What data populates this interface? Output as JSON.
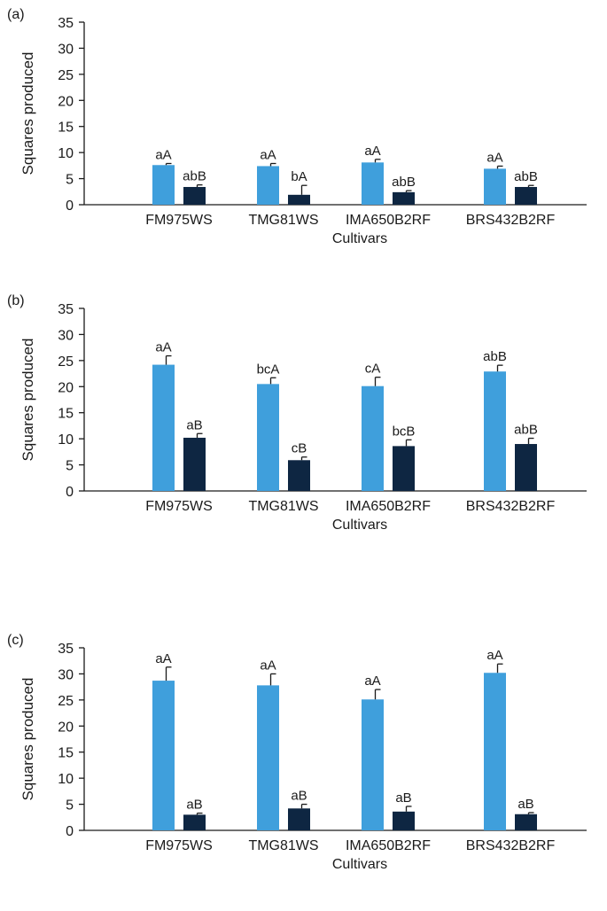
{
  "colors": {
    "series_light": "#3f9fdc",
    "series_dark": "#0e2642",
    "axis": "#1a1a1a"
  },
  "chart_data": [
    {
      "type": "bar",
      "panel_label": "(a)",
      "ylabel": "Squares produced",
      "xlabel": "Cultivars",
      "ylim": [
        0,
        35
      ],
      "yticks": [
        "0",
        "5",
        "10",
        "15",
        "20",
        "25",
        "30",
        "35"
      ],
      "categories": [
        "FM975WS",
        "TMG81WS",
        "IMA650B2RF",
        "BRS432B2RF"
      ],
      "series": [
        {
          "values": [
            7.6,
            7.4,
            8.1,
            6.9
          ],
          "errors": [
            0.3,
            0.5,
            0.6,
            0.5
          ],
          "labels": [
            "aA",
            "aA",
            "aA",
            "aA"
          ]
        },
        {
          "values": [
            3.4,
            1.9,
            2.4,
            3.4
          ],
          "errors": [
            0.4,
            1.8,
            0.3,
            0.3
          ],
          "labels": [
            "abB",
            "bA",
            "abB",
            "abB"
          ]
        }
      ]
    },
    {
      "type": "bar",
      "panel_label": "(b)",
      "ylabel": "Squares produced",
      "xlabel": "Cultivars",
      "ylim": [
        0,
        35
      ],
      "yticks": [
        "0",
        "5",
        "10",
        "15",
        "20",
        "25",
        "30",
        "35"
      ],
      "categories": [
        "FM975WS",
        "TMG81WS",
        "IMA650B2RF",
        "BRS432B2RF"
      ],
      "series": [
        {
          "values": [
            24.2,
            20.5,
            20.1,
            22.9
          ],
          "errors": [
            1.7,
            1.2,
            1.7,
            1.2
          ],
          "labels": [
            "aA",
            "bcA",
            "cA",
            "abB"
          ]
        },
        {
          "values": [
            10.2,
            5.9,
            8.6,
            9.0
          ],
          "errors": [
            0.8,
            0.6,
            1.2,
            1.1
          ],
          "labels": [
            "aB",
            "cB",
            "bcB",
            "abB"
          ]
        }
      ]
    },
    {
      "type": "bar",
      "panel_label": "(c)",
      "ylabel": "Squares produced",
      "xlabel": "Cultivars",
      "ylim": [
        0,
        35
      ],
      "yticks": [
        "0",
        "5",
        "10",
        "15",
        "20",
        "25",
        "30",
        "35"
      ],
      "categories": [
        "FM975WS",
        "TMG81WS",
        "IMA650B2RF",
        "BRS432B2RF"
      ],
      "series": [
        {
          "values": [
            28.7,
            27.8,
            25.1,
            30.2
          ],
          "errors": [
            2.6,
            2.2,
            1.9,
            1.7
          ],
          "labels": [
            "aA",
            "aA",
            "aA",
            "aA"
          ]
        },
        {
          "values": [
            3.0,
            4.2,
            3.6,
            3.1
          ],
          "errors": [
            0.3,
            0.8,
            1.0,
            0.3
          ],
          "labels": [
            "aB",
            "aB",
            "aB",
            "aB"
          ]
        }
      ]
    }
  ]
}
